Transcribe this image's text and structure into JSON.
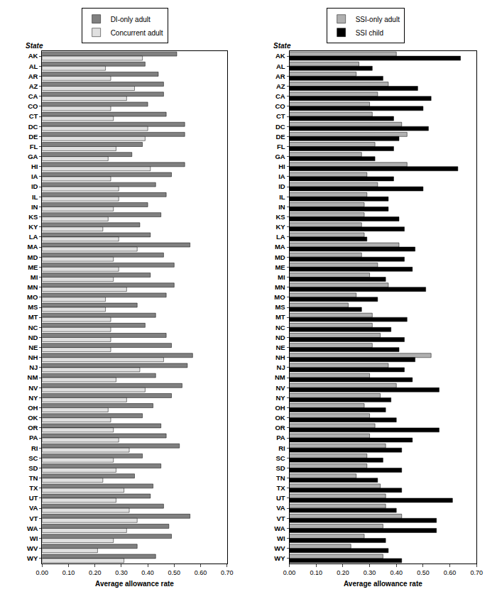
{
  "chart_data": [
    {
      "type": "bar",
      "orientation": "horizontal",
      "legend": "top",
      "grid": false,
      "xlabel": "Average allowance rate",
      "ylabel": "State",
      "xlim": [
        0,
        0.7
      ],
      "xticks": [
        {
          "value": 0,
          "label": "0.00"
        },
        {
          "value": 0.1,
          "label": "0.10"
        },
        {
          "value": 0.2,
          "label": "0.20"
        },
        {
          "value": 0.3,
          "label": "0.30"
        },
        {
          "value": 0.4,
          "label": "0.40"
        },
        {
          "value": 0.5,
          "label": "0.50"
        },
        {
          "value": 0.6,
          "label": "0.60"
        },
        {
          "value": 0.7,
          "label": "0.70"
        }
      ],
      "categories": [
        "AK",
        "AL",
        "AR",
        "AZ",
        "CA",
        "CO",
        "CT",
        "DC",
        "DE",
        "FL",
        "GA",
        "HI",
        "IA",
        "ID",
        "IL",
        "IN",
        "KS",
        "KY",
        "LA",
        "MA",
        "MD",
        "ME",
        "MI",
        "MN",
        "MO",
        "MS",
        "MT",
        "NC",
        "ND",
        "NE",
        "NH",
        "NJ",
        "NM",
        "NV",
        "NY",
        "OH",
        "OK",
        "OR",
        "PA",
        "RI",
        "SC",
        "SD",
        "TN",
        "TX",
        "UT",
        "VA",
        "VT",
        "WA",
        "WI",
        "WV",
        "WY"
      ],
      "series": [
        {
          "name": "DI-only adult",
          "color": "#808080",
          "values": [
            0.51,
            0.39,
            0.44,
            0.46,
            0.46,
            0.4,
            0.47,
            0.54,
            0.54,
            0.38,
            0.34,
            0.54,
            0.49,
            0.43,
            0.47,
            0.4,
            0.45,
            0.37,
            0.41,
            0.56,
            0.46,
            0.5,
            0.41,
            0.5,
            0.47,
            0.36,
            0.43,
            0.39,
            0.47,
            0.49,
            0.57,
            0.55,
            0.43,
            0.53,
            0.49,
            0.42,
            0.38,
            0.45,
            0.47,
            0.52,
            0.38,
            0.45,
            0.35,
            0.42,
            0.41,
            0.46,
            0.56,
            0.48,
            0.49,
            0.36,
            0.43
          ]
        },
        {
          "name": "Concurrent adult",
          "color": "#e0e0e0",
          "values": [
            0.38,
            0.24,
            0.26,
            0.35,
            0.32,
            0.26,
            0.27,
            0.4,
            0.39,
            0.28,
            0.25,
            0.41,
            0.26,
            0.29,
            0.29,
            0.27,
            0.25,
            0.23,
            0.29,
            0.36,
            0.27,
            0.29,
            0.27,
            0.32,
            0.24,
            0.24,
            0.26,
            0.26,
            0.26,
            0.26,
            0.46,
            0.37,
            0.28,
            0.39,
            0.32,
            0.25,
            0.26,
            0.27,
            0.29,
            0.33,
            0.27,
            0.28,
            0.23,
            0.31,
            0.28,
            0.33,
            0.36,
            0.32,
            0.27,
            0.21,
            0.31
          ]
        }
      ]
    },
    {
      "type": "bar",
      "orientation": "horizontal",
      "legend": "top",
      "grid": false,
      "xlabel": "Average allowance rate",
      "ylabel": "State",
      "xlim": [
        0,
        0.7
      ],
      "xticks": [
        {
          "value": 0,
          "label": "0.00"
        },
        {
          "value": 0.1,
          "label": "0.10"
        },
        {
          "value": 0.2,
          "label": "0.20"
        },
        {
          "value": 0.3,
          "label": "0.30"
        },
        {
          "value": 0.4,
          "label": "0.40"
        },
        {
          "value": 0.5,
          "label": "0.50"
        },
        {
          "value": 0.6,
          "label": "0.60"
        },
        {
          "value": 0.7,
          "label": "0.70"
        }
      ],
      "categories": [
        "AK",
        "AL",
        "AR",
        "AZ",
        "CA",
        "CO",
        "CT",
        "DC",
        "DE",
        "FL",
        "GA",
        "HI",
        "IA",
        "ID",
        "IL",
        "IN",
        "KS",
        "KY",
        "LA",
        "MA",
        "MD",
        "ME",
        "MI",
        "MN",
        "MO",
        "MS",
        "MT",
        "NC",
        "ND",
        "NE",
        "NH",
        "NJ",
        "NM",
        "NV",
        "NY",
        "OH",
        "OK",
        "OR",
        "PA",
        "RI",
        "SC",
        "SD",
        "TN",
        "TX",
        "UT",
        "VA",
        "VT",
        "WA",
        "WI",
        "WV",
        "WY"
      ],
      "series": [
        {
          "name": "SSI-only adult",
          "color": "#b0b0b0",
          "values": [
            0.4,
            0.26,
            0.25,
            0.37,
            0.33,
            0.3,
            0.31,
            0.42,
            0.44,
            0.32,
            0.27,
            0.44,
            0.29,
            0.33,
            0.29,
            0.28,
            0.28,
            0.27,
            0.28,
            0.41,
            0.27,
            0.33,
            0.3,
            0.37,
            0.25,
            0.22,
            0.31,
            0.31,
            0.34,
            0.31,
            0.53,
            0.37,
            0.3,
            0.4,
            0.34,
            0.28,
            0.3,
            0.32,
            0.3,
            0.36,
            0.29,
            0.29,
            0.25,
            0.34,
            0.36,
            0.36,
            0.42,
            0.35,
            0.28,
            0.23,
            0.35
          ]
        },
        {
          "name": "SSI child",
          "color": "#000000",
          "values": [
            0.64,
            0.31,
            0.35,
            0.48,
            0.53,
            0.5,
            0.39,
            0.52,
            0.41,
            0.39,
            0.32,
            0.63,
            0.39,
            0.5,
            0.37,
            0.37,
            0.41,
            0.43,
            0.29,
            0.47,
            0.43,
            0.46,
            0.36,
            0.51,
            0.33,
            0.27,
            0.44,
            0.38,
            0.43,
            0.41,
            0.47,
            0.43,
            0.46,
            0.56,
            0.38,
            0.36,
            0.4,
            0.56,
            0.46,
            0.42,
            0.35,
            0.42,
            0.33,
            0.42,
            0.61,
            0.4,
            0.55,
            0.55,
            0.36,
            0.37,
            0.42
          ]
        }
      ]
    }
  ]
}
